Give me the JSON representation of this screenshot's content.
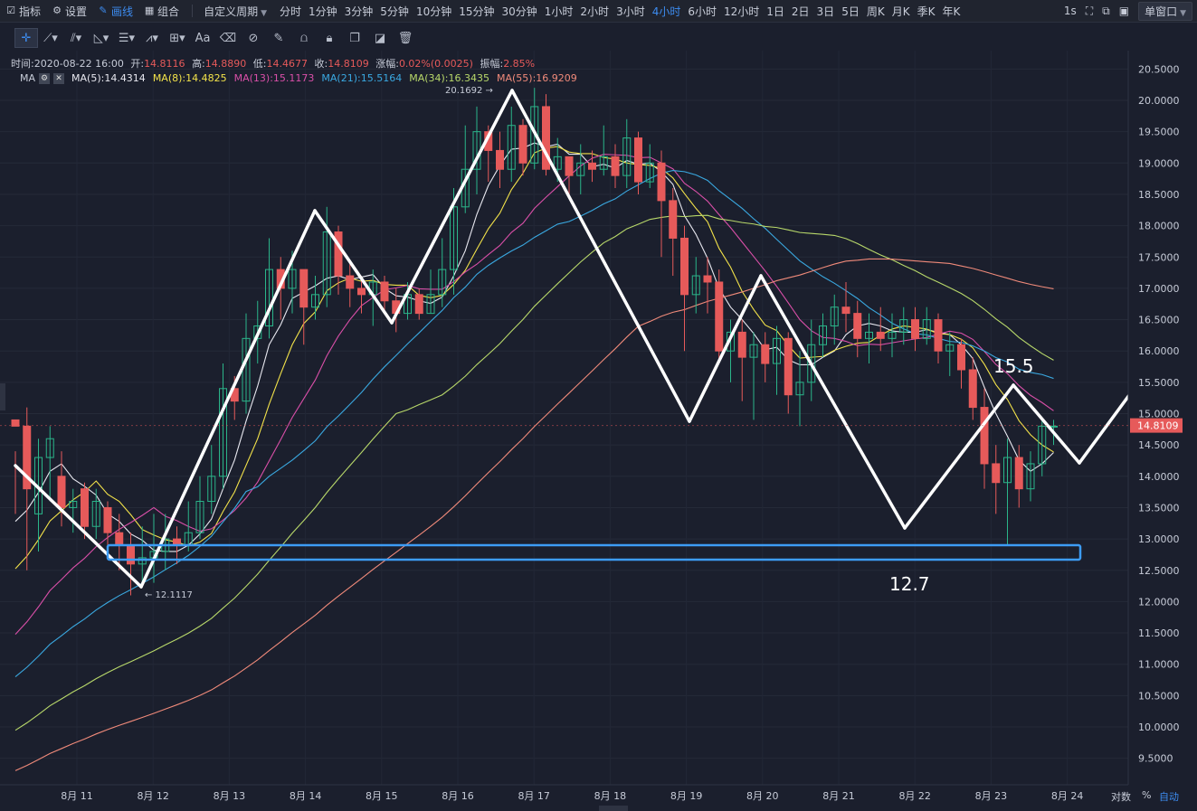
{
  "toolbar": {
    "indicators": "指标",
    "settings": "设置",
    "draw": "画线",
    "combo": "组合",
    "custom_period": "自定义周期",
    "periods": [
      "分时",
      "1分钟",
      "3分钟",
      "5分钟",
      "10分钟",
      "15分钟",
      "30分钟",
      "1小时",
      "2小时",
      "3小时",
      "4小时",
      "6小时",
      "12小时",
      "1日",
      "2日",
      "3日",
      "5日",
      "周K",
      "月K",
      "季K",
      "年K"
    ],
    "active_period": "4小时",
    "interval": "1s",
    "window_mode": "单窗口"
  },
  "draw_tools": [
    "crosshair-icon",
    "trend-line-icon",
    "parallel-lines-icon",
    "angle-icon",
    "horizontal-lines-icon",
    "wave-icon",
    "measure-icon",
    "text-icon",
    "eraser-icon",
    "brush-icon",
    "pencil-icon",
    "magnet-icon",
    "lock-icon",
    "copy-icon",
    "hide-icon",
    "trash-icon"
  ],
  "text_tool": "Aa",
  "info": {
    "time_label": "时间:",
    "time": "2020-08-22 16:00",
    "open_label": "开:",
    "open": "14.8116",
    "high_label": "高:",
    "high": "14.8890",
    "low_label": "低:",
    "low": "14.4677",
    "close_label": "收:",
    "close": "14.8109",
    "change_label": "涨幅:",
    "change": "0.02%(0.0025)",
    "amp_label": "振幅:",
    "amp": "2.85%"
  },
  "ma": {
    "label": "MA",
    "items": [
      {
        "text": "MA(5):14.4314",
        "color": "#e8e8f0"
      },
      {
        "text": "MA(8):14.4825",
        "color": "#f2e24a"
      },
      {
        "text": "MA(13):15.1173",
        "color": "#d94fa8"
      },
      {
        "text": "MA(21):15.5164",
        "color": "#3aa8e0"
      },
      {
        "text": "MA(34):16.3435",
        "color": "#b8d86a"
      },
      {
        "text": "MA(55):16.9209",
        "color": "#f08a7a"
      }
    ]
  },
  "price_axis": [
    "20.5000",
    "20.0000",
    "19.5000",
    "19.0000",
    "18.5000",
    "18.0000",
    "17.5000",
    "17.0000",
    "16.5000",
    "16.0000",
    "15.5000",
    "15.0000",
    "14.5000",
    "14.0000",
    "13.5000",
    "13.0000",
    "12.5000",
    "12.0000",
    "11.5000",
    "11.0000",
    "10.5000",
    "10.0000",
    "9.5000"
  ],
  "current_price": "14.8109",
  "date_axis": [
    "8月 11",
    "8月 12",
    "8月 13",
    "8月 14",
    "8月 15",
    "8月 16",
    "8月 17",
    "8月 18",
    "8月 19",
    "8月 20",
    "8月 21",
    "8月 22",
    "8月 23",
    "8月 24"
  ],
  "annotations": {
    "high_mark": "20.1692 →",
    "low_mark": "← 12.1117",
    "target": "15.5",
    "support": "12.7"
  },
  "axis_buttons": {
    "log": "对数",
    "percent": "%",
    "auto": "自动"
  },
  "colors": {
    "up": "#2bb58a",
    "down": "#e65a5a",
    "accent": "#3d8cf0",
    "support_box": "#3d9cf5"
  },
  "candles": [
    [
      14.9,
      14.8,
      14.4,
      13.4
    ],
    [
      14.8,
      13.8,
      15.1,
      12.5
    ],
    [
      13.4,
      14.3,
      14.6,
      12.8
    ],
    [
      14.3,
      14.6,
      14.8,
      13.6
    ],
    [
      14.0,
      13.5,
      14.4,
      13.2
    ],
    [
      13.5,
      13.6,
      13.8,
      13.1
    ],
    [
      13.8,
      13.2,
      13.9,
      13.0
    ],
    [
      13.2,
      13.6,
      13.8,
      13.0
    ],
    [
      13.5,
      13.1,
      13.6,
      12.9
    ],
    [
      13.1,
      12.9,
      13.4,
      12.5
    ],
    [
      12.9,
      12.6,
      13.1,
      12.1
    ],
    [
      12.6,
      12.7,
      13.2,
      12.3
    ],
    [
      12.7,
      12.8,
      13.4,
      12.3
    ],
    [
      12.8,
      13.0,
      13.4,
      12.5
    ],
    [
      13.0,
      12.9,
      13.2,
      12.6
    ],
    [
      12.9,
      13.1,
      13.6,
      12.8
    ],
    [
      13.1,
      13.6,
      14.0,
      13.0
    ],
    [
      13.6,
      14.0,
      14.5,
      13.4
    ],
    [
      14.0,
      15.4,
      15.8,
      13.8
    ],
    [
      15.4,
      15.2,
      15.6,
      14.9
    ],
    [
      15.2,
      16.2,
      16.6,
      15.0
    ],
    [
      16.2,
      16.4,
      16.8,
      15.8
    ],
    [
      16.4,
      17.3,
      17.8,
      16.2
    ],
    [
      17.3,
      17.0,
      17.5,
      16.5
    ],
    [
      17.0,
      17.3,
      17.6,
      16.6
    ],
    [
      17.3,
      16.7,
      17.3,
      16.1
    ],
    [
      16.7,
      16.9,
      17.2,
      16.5
    ],
    [
      16.9,
      17.9,
      18.3,
      16.7
    ],
    [
      17.9,
      17.2,
      18.0,
      16.9
    ],
    [
      17.2,
      17.0,
      17.4,
      16.7
    ],
    [
      17.0,
      16.9,
      17.2,
      16.6
    ],
    [
      16.9,
      17.1,
      17.3,
      16.4
    ],
    [
      17.1,
      16.8,
      17.2,
      16.6
    ],
    [
      16.8,
      16.6,
      17.0,
      16.3
    ],
    [
      16.6,
      16.9,
      17.1,
      16.5
    ],
    [
      16.9,
      16.6,
      17.0,
      16.5
    ],
    [
      16.6,
      16.9,
      17.3,
      16.6
    ],
    [
      16.9,
      17.3,
      17.8,
      16.7
    ],
    [
      17.3,
      18.3,
      18.6,
      16.9
    ],
    [
      18.3,
      18.9,
      19.6,
      18.2
    ],
    [
      18.9,
      19.5,
      19.9,
      18.5
    ],
    [
      19.5,
      19.2,
      19.6,
      18.7
    ],
    [
      19.2,
      18.9,
      19.5,
      18.6
    ],
    [
      18.9,
      19.6,
      19.9,
      18.7
    ],
    [
      19.6,
      19.0,
      19.7,
      18.8
    ],
    [
      19.0,
      19.9,
      20.2,
      18.9
    ],
    [
      19.9,
      18.9,
      20.1,
      18.8
    ],
    [
      18.9,
      19.1,
      19.4,
      18.7
    ],
    [
      19.1,
      18.8,
      19.1,
      18.5
    ],
    [
      18.8,
      19.0,
      19.3,
      18.5
    ],
    [
      19.0,
      18.9,
      19.2,
      18.7
    ],
    [
      18.9,
      19.1,
      19.6,
      18.8
    ],
    [
      19.1,
      18.8,
      19.3,
      18.6
    ],
    [
      18.8,
      19.4,
      19.7,
      18.6
    ],
    [
      19.4,
      18.7,
      19.5,
      18.5
    ],
    [
      18.7,
      19.0,
      19.3,
      18.6
    ],
    [
      19.0,
      18.4,
      19.2,
      17.5
    ],
    [
      18.4,
      17.8,
      18.6,
      17.2
    ],
    [
      17.8,
      16.9,
      18.0,
      16.0
    ],
    [
      16.9,
      17.2,
      17.5,
      16.6
    ],
    [
      17.2,
      17.1,
      17.5,
      16.6
    ],
    [
      17.1,
      16.0,
      17.3,
      15.8
    ],
    [
      16.0,
      16.3,
      16.5,
      15.5
    ],
    [
      16.3,
      15.9,
      16.5,
      15.2
    ],
    [
      15.9,
      16.1,
      16.3,
      14.9
    ],
    [
      16.1,
      15.8,
      16.3,
      15.5
    ],
    [
      15.8,
      16.2,
      16.4,
      15.3
    ],
    [
      16.2,
      15.3,
      16.3,
      15.0
    ],
    [
      15.3,
      15.5,
      16.0,
      14.8
    ],
    [
      15.5,
      16.1,
      16.5,
      15.2
    ],
    [
      16.1,
      16.4,
      16.6,
      15.9
    ],
    [
      16.4,
      16.7,
      16.9,
      16.1
    ],
    [
      16.7,
      16.6,
      17.1,
      16.3
    ],
    [
      16.6,
      16.2,
      16.8,
      15.9
    ],
    [
      16.2,
      16.3,
      16.6,
      15.8
    ],
    [
      16.3,
      16.2,
      16.7,
      16.0
    ],
    [
      16.2,
      16.3,
      16.6,
      15.9
    ],
    [
      16.3,
      16.5,
      16.7,
      16.1
    ],
    [
      16.5,
      16.2,
      16.7,
      16.0
    ],
    [
      16.2,
      16.5,
      16.7,
      16.1
    ],
    [
      16.5,
      16.0,
      16.6,
      15.8
    ],
    [
      16.0,
      16.1,
      16.3,
      15.6
    ],
    [
      16.1,
      15.7,
      16.2,
      15.4
    ],
    [
      15.7,
      15.1,
      15.9,
      14.9
    ],
    [
      15.1,
      14.2,
      15.4,
      13.8
    ],
    [
      14.2,
      13.9,
      14.5,
      13.4
    ],
    [
      13.9,
      14.3,
      14.6,
      12.9
    ],
    [
      14.3,
      13.8,
      14.5,
      13.5
    ],
    [
      13.8,
      14.2,
      14.4,
      13.6
    ],
    [
      14.2,
      14.8,
      14.9,
      14.0
    ],
    [
      14.8,
      14.8,
      14.9,
      14.5
    ]
  ]
}
